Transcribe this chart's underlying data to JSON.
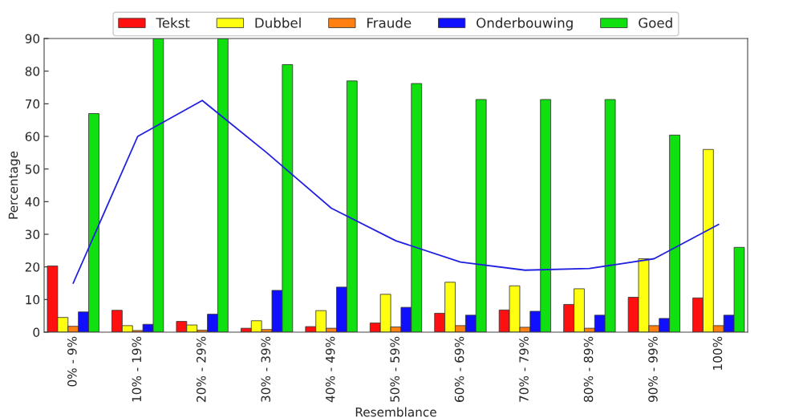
{
  "chart_data": {
    "type": "bar",
    "xlabel": "Resemblance",
    "ylabel": "Percentage",
    "categories": [
      "0% - 9%",
      "10% - 19%",
      "20% - 29%",
      "30% - 39%",
      "40% - 49%",
      "50% - 59%",
      "60% - 69%",
      "70% - 79%",
      "80% - 89%",
      "90% - 99%",
      "100%"
    ],
    "series": [
      {
        "name": "Tekst",
        "color": "#ff1010",
        "values": [
          20.3,
          6.7,
          3.3,
          1.2,
          1.7,
          2.8,
          5.8,
          6.8,
          8.5,
          10.7,
          10.5
        ]
      },
      {
        "name": "Dubbel",
        "color": "#ffff10",
        "values": [
          4.5,
          2.0,
          2.2,
          3.5,
          6.6,
          11.6,
          15.3,
          14.2,
          13.3,
          22.5,
          56
        ]
      },
      {
        "name": "Fraude",
        "color": "#ff8010",
        "values": [
          1.8,
          0.5,
          0.6,
          0.8,
          1.2,
          1.6,
          2.0,
          1.5,
          1.2,
          2.0,
          2.0
        ]
      },
      {
        "name": "Onderbouwing",
        "color": "#1010ff",
        "values": [
          6.2,
          2.4,
          5.5,
          12.8,
          13.8,
          7.6,
          5.2,
          6.4,
          5.2,
          4.2,
          5.2
        ]
      },
      {
        "name": "Goed",
        "color": "#10e010",
        "values": [
          67,
          90,
          90,
          82,
          77,
          76.2,
          71.3,
          71.3,
          71.3,
          60.4,
          26
        ]
      },
      {
        "type": "line",
        "color": "#2020e0",
        "values": [
          15,
          60,
          71,
          55,
          38,
          28,
          21.5,
          19,
          19.5,
          22.5,
          33
        ]
      }
    ],
    "ylim": [
      0,
      90
    ],
    "yticks": [
      0,
      10,
      20,
      30,
      40,
      50,
      60,
      70,
      80,
      90
    ],
    "grid": false,
    "legend": "top"
  }
}
